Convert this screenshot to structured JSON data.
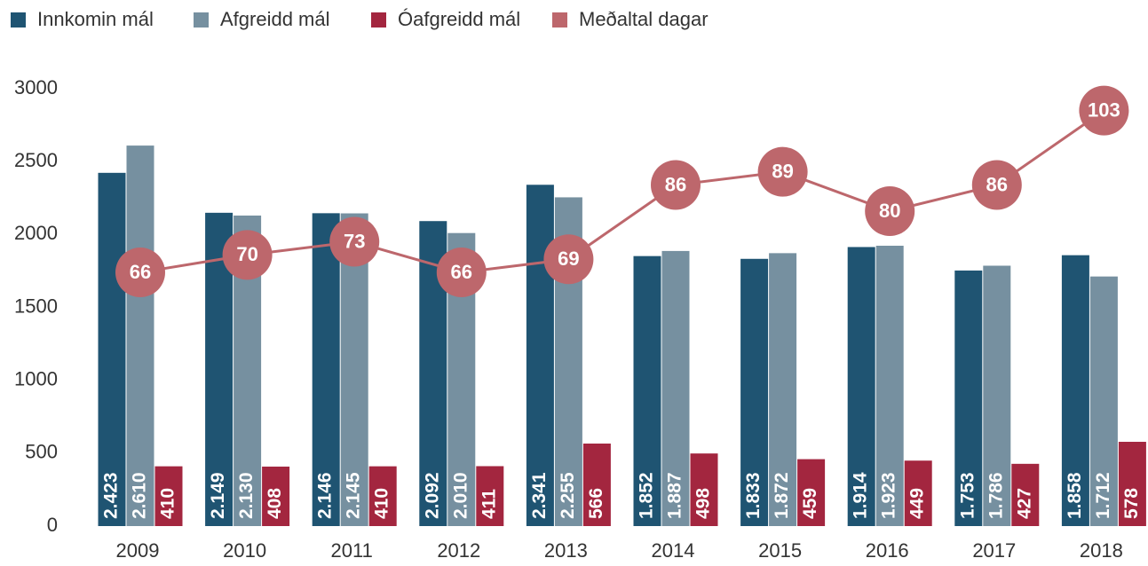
{
  "chart_data": {
    "type": "bar_line",
    "categories": [
      "2009",
      "2010",
      "2011",
      "2012",
      "2013",
      "2014",
      "2015",
      "2016",
      "2017",
      "2018"
    ],
    "series": [
      {
        "name": "Innkomin mál",
        "color": "#1f5472",
        "type": "bar",
        "values": [
          2423,
          2149,
          2146,
          2092,
          2341,
          1852,
          1833,
          1914,
          1753,
          1858
        ],
        "value_labels": [
          "2.423",
          "2.149",
          "2.146",
          "2.092",
          "2.341",
          "1.852",
          "1.833",
          "1.914",
          "1.753",
          "1.858"
        ]
      },
      {
        "name": "Afgreidd mál",
        "color": "#7690a0",
        "type": "bar",
        "values": [
          2610,
          2130,
          2145,
          2010,
          2255,
          1887,
          1872,
          1923,
          1786,
          1712
        ],
        "value_labels": [
          "2.610",
          "2.130",
          "2.145",
          "2.010",
          "2.255",
          "1.887",
          "1.872",
          "1.923",
          "1.786",
          "1.712"
        ]
      },
      {
        "name": "Óafgreidd mál",
        "color": "#a3263f",
        "type": "bar",
        "values": [
          410,
          408,
          410,
          411,
          566,
          498,
          459,
          449,
          427,
          578
        ]
      },
      {
        "name": "Meðaltal dagar",
        "color": "#bd676c",
        "type": "line",
        "axis": "y2",
        "values": [
          66,
          70,
          73,
          66,
          69,
          86,
          89,
          80,
          86,
          103
        ]
      }
    ],
    "ylim": [
      0,
      3000
    ],
    "yticks": [
      0,
      500,
      1000,
      1500,
      2000,
      2500,
      3000
    ],
    "y2lim": [
      8,
      108
    ],
    "grid": false,
    "legend": "top"
  }
}
